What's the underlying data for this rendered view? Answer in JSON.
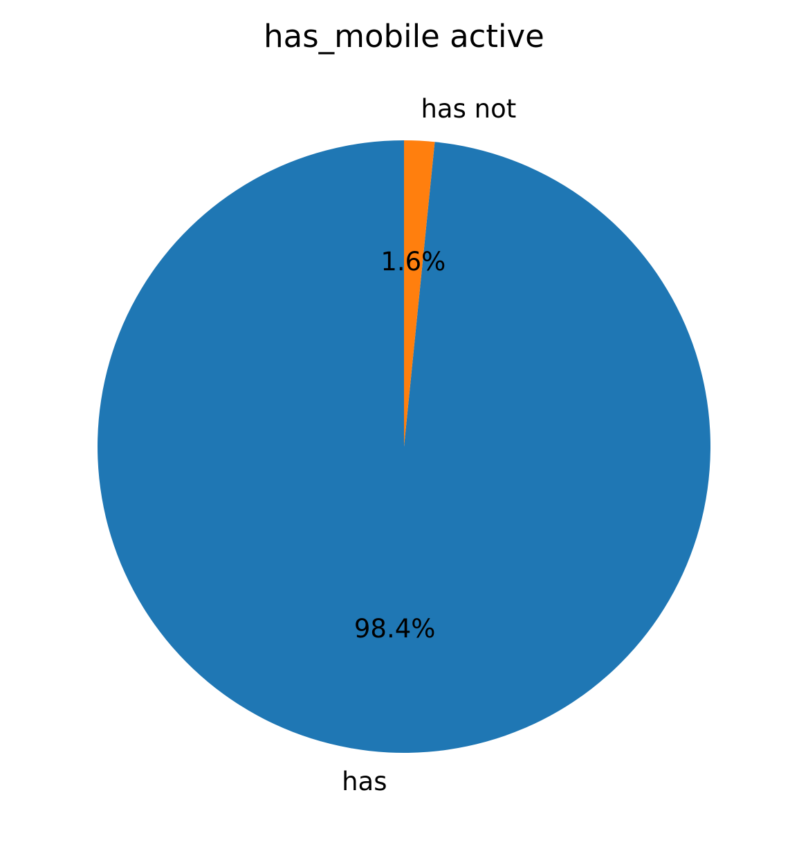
{
  "chart_data": {
    "type": "pie",
    "title": "has_mobile active",
    "categories": [
      "has",
      "has not"
    ],
    "values": [
      98.4,
      1.6
    ],
    "percent_labels": [
      "98.4%",
      "1.6%"
    ],
    "colors": [
      "#1f77b4",
      "#ff7f0e"
    ],
    "start_angle": 90,
    "direction": "counterclockwise",
    "legend": "none"
  }
}
